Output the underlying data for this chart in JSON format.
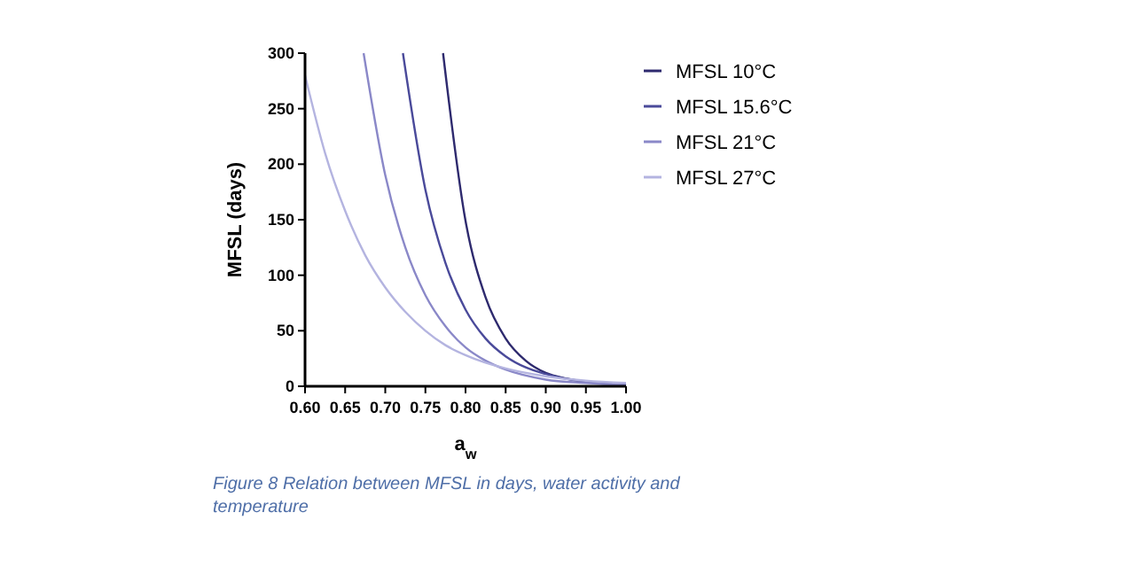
{
  "chart_data": {
    "type": "line",
    "xlabel": "a$_{w}$",
    "ylabel": "MFSL (days)",
    "annotations": [
      "Figure 8 Relation between MFSL in days, water activity and temperature"
    ],
    "xlim": [
      0.6,
      1.0
    ],
    "ylim": [
      0,
      300
    ],
    "xticks": [
      {
        "value": 0.6,
        "label": "0.60"
      },
      0.65,
      {
        "value": 0.7,
        "label": "0.70"
      },
      0.75,
      {
        "value": 0.8,
        "label": "0.80"
      },
      0.85,
      {
        "value": 0.9,
        "label": "0.90"
      },
      0.95,
      {
        "value": 1.0,
        "label": "1.00"
      }
    ],
    "yticks": [
      0,
      50,
      100,
      150,
      200,
      250,
      300
    ],
    "grid": false,
    "legend": "right",
    "marker": "none",
    "line_style": "solid",
    "series": [
      {
        "name": "MFSL 10°C",
        "color": "#2e2a6e",
        "x": [
          0.772,
          0.8,
          0.825,
          0.85,
          0.875,
          0.9,
          0.925,
          0.95,
          1.0
        ],
        "values": [
          300,
          149,
          80,
          43,
          23,
          12,
          7,
          4,
          1
        ]
      },
      {
        "name": "MFSL 15.6°C",
        "color": "#4a4a9a",
        "x": [
          0.722,
          0.75,
          0.775,
          0.8,
          0.825,
          0.85,
          0.875,
          0.9,
          0.95,
          1.0
        ],
        "values": [
          300,
          177,
          111,
          69,
          43,
          27,
          17,
          11,
          4,
          2
        ]
      },
      {
        "name": "MFSL 21°C",
        "color": "#8a88c8",
        "x": [
          0.673,
          0.7,
          0.725,
          0.75,
          0.775,
          0.8,
          0.825,
          0.85,
          0.9,
          0.95,
          1.0
        ],
        "values": [
          300,
          190,
          125,
          82,
          54,
          35,
          23,
          15,
          6,
          3,
          1
        ]
      },
      {
        "name": "MFSL 27°C",
        "color": "#b4b4e0",
        "x": [
          0.6,
          0.625,
          0.65,
          0.675,
          0.7,
          0.725,
          0.75,
          0.775,
          0.8,
          0.85,
          0.9,
          0.95,
          1.0
        ],
        "values": [
          280,
          210,
          158,
          118,
          89,
          67,
          50,
          37,
          28,
          16,
          9,
          5,
          3
        ]
      }
    ]
  }
}
